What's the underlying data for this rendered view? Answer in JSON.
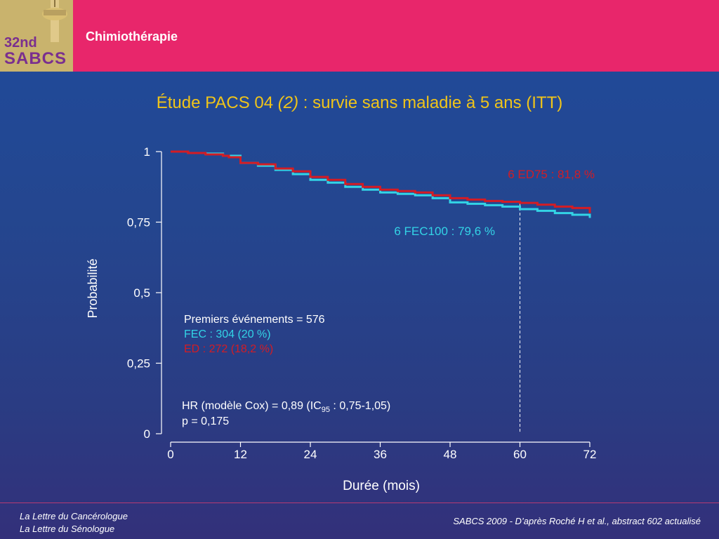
{
  "header": {
    "logo_line1": "32nd",
    "logo_line2": "SABCS",
    "section": "Chimiothérapie"
  },
  "title": {
    "prefix": "Étude PACS 04 ",
    "ref": "(2)",
    "suffix": " : survie sans maladie à 5 ans (ITT)"
  },
  "colors": {
    "ed": "#d41c24",
    "fec": "#33d4e6",
    "title": "#f0c419",
    "header": "#e8266b"
  },
  "chart_data": {
    "type": "line",
    "xlabel": "Durée (mois)",
    "ylabel": "Probabilité",
    "xticks": [
      0,
      12,
      24,
      36,
      48,
      60,
      72
    ],
    "yticks": [
      {
        "v": 0,
        "label": "0"
      },
      {
        "v": 0.25,
        "label": "0,25"
      },
      {
        "v": 0.5,
        "label": "0,5"
      },
      {
        "v": 0.75,
        "label": "0,75"
      },
      {
        "v": 1,
        "label": "1"
      }
    ],
    "xlim": [
      0,
      72
    ],
    "ylim": [
      0,
      1
    ],
    "reference_line_x": 60,
    "series": [
      {
        "name": "6 ED75 : 81,8 %",
        "color": "#d41c24",
        "points": [
          [
            0,
            1.0
          ],
          [
            3,
            0.995
          ],
          [
            6,
            0.99
          ],
          [
            9,
            0.985
          ],
          [
            10,
            0.98
          ],
          [
            12,
            0.96
          ],
          [
            15,
            0.955
          ],
          [
            18,
            0.94
          ],
          [
            21,
            0.93
          ],
          [
            24,
            0.91
          ],
          [
            27,
            0.9
          ],
          [
            30,
            0.885
          ],
          [
            33,
            0.875
          ],
          [
            36,
            0.865
          ],
          [
            39,
            0.86
          ],
          [
            42,
            0.855
          ],
          [
            45,
            0.845
          ],
          [
            48,
            0.835
          ],
          [
            51,
            0.83
          ],
          [
            54,
            0.825
          ],
          [
            57,
            0.822
          ],
          [
            60,
            0.818
          ],
          [
            63,
            0.812
          ],
          [
            66,
            0.805
          ],
          [
            69,
            0.8
          ],
          [
            72,
            0.782
          ]
        ]
      },
      {
        "name": "6 FEC100 : 79,6 %",
        "color": "#33d4e6",
        "points": [
          [
            0,
            1.0
          ],
          [
            3,
            0.995
          ],
          [
            6,
            0.993
          ],
          [
            9,
            0.985
          ],
          [
            12,
            0.96
          ],
          [
            15,
            0.95
          ],
          [
            18,
            0.935
          ],
          [
            21,
            0.92
          ],
          [
            24,
            0.9
          ],
          [
            27,
            0.89
          ],
          [
            30,
            0.875
          ],
          [
            33,
            0.865
          ],
          [
            36,
            0.855
          ],
          [
            39,
            0.85
          ],
          [
            42,
            0.845
          ],
          [
            45,
            0.835
          ],
          [
            48,
            0.82
          ],
          [
            51,
            0.815
          ],
          [
            54,
            0.81
          ],
          [
            57,
            0.805
          ],
          [
            60,
            0.796
          ],
          [
            63,
            0.79
          ],
          [
            66,
            0.782
          ],
          [
            69,
            0.776
          ],
          [
            72,
            0.765
          ]
        ]
      }
    ],
    "annotations": {
      "events_title": "Premiers événements = 576",
      "events_fec": "FEC : 304 (20 %)",
      "events_ed": "ED : 272 (18,2 %)",
      "hr_main": "HR (modèle Cox) = 0,89 (IC",
      "hr_sub": "95",
      "hr_rest": " : 0,75-1,05)",
      "p_value": "p = 0,175"
    }
  },
  "footer": {
    "left1": "La Lettre du Cancérologue",
    "left2": "La Lettre du Sénologue",
    "right": "SABCS 2009 - D’après Roché H et al., abstract 602 actualisé"
  }
}
